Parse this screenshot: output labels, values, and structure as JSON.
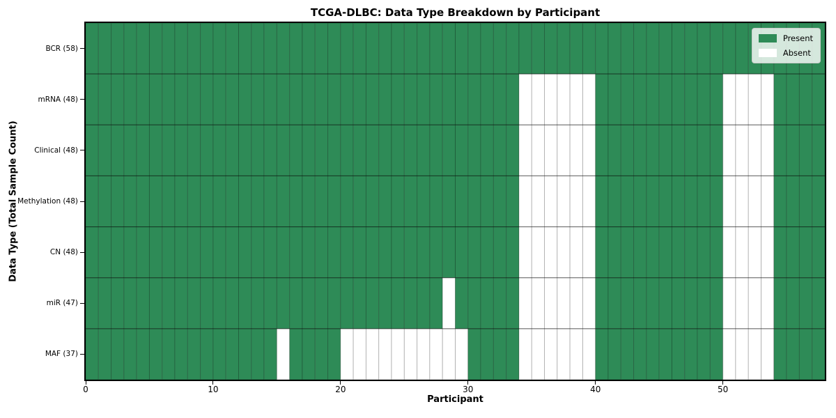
{
  "chart_data": {
    "type": "heatmap",
    "title": "TCGA-DLBC: Data Type Breakdown by Participant",
    "xlabel": "Participant",
    "ylabel": "Data Type (Total Sample Count)",
    "n_participants": 58,
    "x_range": [
      0,
      58
    ],
    "x_ticks": [
      0,
      10,
      20,
      30,
      40,
      50
    ],
    "grid": true,
    "legend_position": "upper right",
    "rows": [
      {
        "data_type": "BCR",
        "present_count": 58,
        "label": "BCR (58)",
        "absent_participants": []
      },
      {
        "data_type": "mRNA",
        "present_count": 48,
        "label": "mRNA (48)",
        "absent_participants": [
          34,
          35,
          36,
          37,
          38,
          39,
          50,
          51,
          52,
          53
        ]
      },
      {
        "data_type": "Clinical",
        "present_count": 48,
        "label": "Clinical (48)",
        "absent_participants": [
          34,
          35,
          36,
          37,
          38,
          39,
          50,
          51,
          52,
          53
        ]
      },
      {
        "data_type": "Methylation",
        "present_count": 48,
        "label": "Methylation (48)",
        "absent_participants": [
          34,
          35,
          36,
          37,
          38,
          39,
          50,
          51,
          52,
          53
        ]
      },
      {
        "data_type": "CN",
        "present_count": 48,
        "label": "CN (48)",
        "absent_participants": [
          34,
          35,
          36,
          37,
          38,
          39,
          50,
          51,
          52,
          53
        ]
      },
      {
        "data_type": "miR",
        "present_count": 47,
        "label": "miR (47)",
        "absent_participants": [
          28,
          34,
          35,
          36,
          37,
          38,
          39,
          50,
          51,
          52,
          53
        ]
      },
      {
        "data_type": "MAF",
        "present_count": 37,
        "label": "MAF (37)",
        "absent_participants": [
          15,
          20,
          21,
          22,
          23,
          24,
          25,
          26,
          27,
          28,
          29,
          34,
          35,
          36,
          37,
          38,
          39,
          50,
          51,
          52,
          53
        ]
      }
    ],
    "legend": [
      {
        "label": "Present",
        "color": "#2e8b57"
      },
      {
        "label": "Absent",
        "color": "#ffffff"
      }
    ],
    "colors": {
      "present": "#2e8b57",
      "absent": "#ffffff",
      "grid_line": "rgba(0,0,0,0.22)",
      "row_line": "rgba(0,0,0,0.45)",
      "border": "#000000"
    }
  }
}
